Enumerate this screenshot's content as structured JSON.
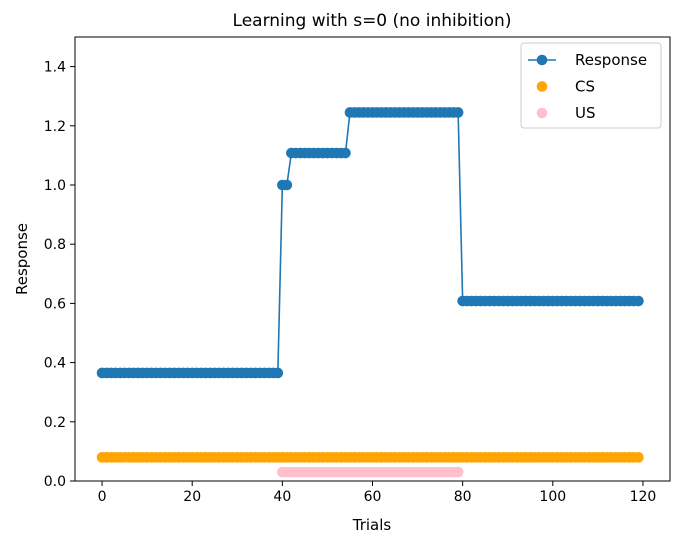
{
  "chart_data": {
    "type": "line",
    "title": "Learning with s=0 (no inhibition)",
    "xlabel": "Trials",
    "ylabel": "Response",
    "xlim": [
      -6,
      126
    ],
    "ylim": [
      0,
      1.5
    ],
    "xticks": [
      0,
      20,
      40,
      60,
      80,
      100,
      120
    ],
    "yticks": [
      0.0,
      0.2,
      0.4,
      0.6,
      0.8,
      1.0,
      1.2,
      1.4
    ],
    "grid": false,
    "legend_position": "top-right",
    "series": [
      {
        "name": "Response",
        "kind": "line-marker",
        "color": "#1f77b4",
        "segments": [
          {
            "from": 0,
            "to": 39,
            "y": 0.365
          },
          {
            "from": 40,
            "to": 41,
            "y": 1.0
          },
          {
            "from": 42,
            "to": 54,
            "y": 1.108
          },
          {
            "from": 55,
            "to": 79,
            "y": 1.245
          },
          {
            "from": 80,
            "to": 119,
            "y": 0.608
          }
        ]
      },
      {
        "name": "CS",
        "kind": "scatter",
        "color": "#ffa500",
        "segments": [
          {
            "from": 0,
            "to": 119,
            "y": 0.08
          }
        ]
      },
      {
        "name": "US",
        "kind": "scatter",
        "color": "#ffc0cb",
        "segments": [
          {
            "from": 40,
            "to": 79,
            "y": 0.03
          }
        ]
      }
    ]
  }
}
